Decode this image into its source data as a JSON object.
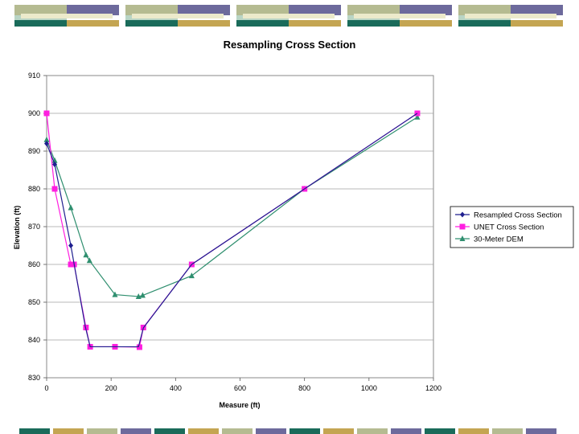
{
  "colors": {
    "banner_sage": "#b5bb91",
    "banner_purple": "#6d6a9c",
    "banner_teal": "#1a6b5a",
    "banner_gold": "#c4a552",
    "banner_light": "#eceacb",
    "banner_mint": "#b9d5c5",
    "series_resampled": "#1f1f8f",
    "series_unet": "#ff1ee0",
    "series_dem": "#2f8f6f"
  },
  "chart_data": {
    "type": "line",
    "title": "Resampling Cross Section",
    "xlabel": "Measure (ft)",
    "ylabel": "Elevation (ft)",
    "xlim": [
      0,
      1200
    ],
    "ylim": [
      830,
      910
    ],
    "xticks": [
      0,
      200,
      400,
      600,
      800,
      1000,
      1200
    ],
    "yticks": [
      830,
      840,
      850,
      860,
      870,
      880,
      890,
      900,
      910
    ],
    "grid": "horizontal",
    "legend_position": "right",
    "series": [
      {
        "name": "Resampled Cross Section",
        "color": "#1f1f8f",
        "marker": "diamond",
        "x": [
          0,
          25,
          75,
          120,
          135,
          210,
          285,
          300,
          450,
          800,
          1150
        ],
        "y": [
          892,
          886.5,
          865,
          843.5,
          838.2,
          838.2,
          838.2,
          843.2,
          860,
          880,
          900
        ],
        "markers_x": [
          0,
          25,
          75
        ],
        "markers_y": [
          892,
          886.5,
          865
        ]
      },
      {
        "name": "UNET Cross Section",
        "color": "#ff1ee0",
        "marker": "square",
        "x": [
          0,
          25,
          75,
          85,
          122,
          135,
          212,
          288,
          300,
          450,
          800,
          1150
        ],
        "y": [
          900,
          880,
          860,
          860,
          843.3,
          838.2,
          838.2,
          838.1,
          843.3,
          860,
          880,
          900
        ],
        "markers_x": [
          0,
          25,
          75,
          85,
          122,
          135,
          212,
          288,
          300,
          450,
          800,
          1150
        ],
        "markers_y": [
          900,
          880,
          860,
          860,
          843.3,
          838.2,
          838.2,
          838.1,
          843.3,
          860,
          880,
          900
        ]
      },
      {
        "name": "30-Meter DEM",
        "color": "#2f8f6f",
        "marker": "triangle",
        "x": [
          0,
          25,
          75,
          122,
          133,
          212,
          285,
          298,
          450,
          800,
          1150
        ],
        "y": [
          893,
          887.5,
          875,
          862.5,
          861,
          852,
          851.5,
          851.8,
          857,
          880,
          899
        ],
        "markers_x": [
          0,
          25,
          75,
          122,
          133,
          212,
          285,
          298,
          450,
          800,
          1150
        ],
        "markers_y": [
          893,
          887.5,
          875,
          862.5,
          861,
          852,
          851.5,
          851.8,
          857,
          880,
          899
        ]
      }
    ]
  }
}
